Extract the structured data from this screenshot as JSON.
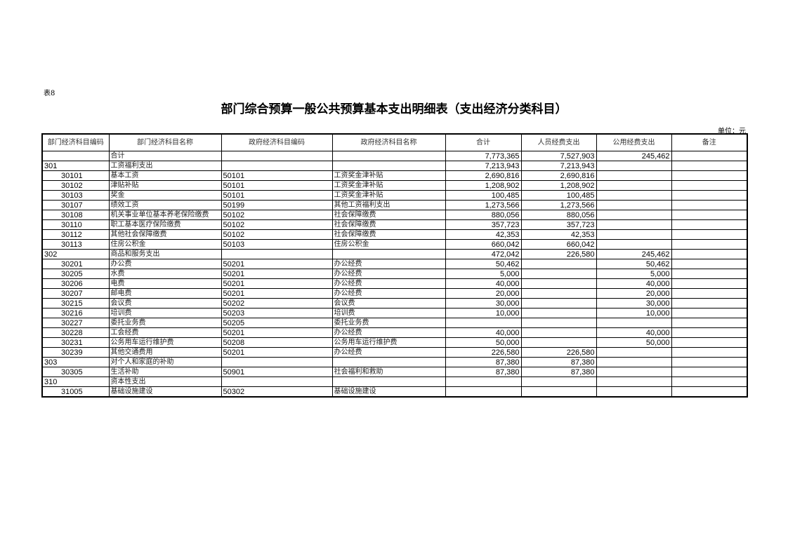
{
  "table_no": "表8",
  "title": "部门综合预算一般公共预算基本支出明细表（支出经济分类科目）",
  "unit": "单位：元",
  "headers": [
    "部门经济科目编码",
    "部门经济科目名称",
    "政府经济科目编码",
    "政府经济科目名称",
    "合计",
    "人员经费支出",
    "公用经费支出",
    "备注"
  ],
  "rows": [
    {
      "code": "",
      "name": "合计",
      "gov_code": "",
      "gov_name": "",
      "total": "7,773,365",
      "personnel": "7,527,903",
      "public": "245,462",
      "note": "",
      "level": 0
    },
    {
      "code": "301",
      "name": "工资福利支出",
      "gov_code": "",
      "gov_name": "",
      "total": "7,213,943",
      "personnel": "7,213,943",
      "public": "",
      "note": "",
      "level": 1
    },
    {
      "code": "30101",
      "name": "基本工资",
      "gov_code": "50101",
      "gov_name": "工资奖金津补贴",
      "total": "2,690,816",
      "personnel": "2,690,816",
      "public": "",
      "note": "",
      "level": 2
    },
    {
      "code": "30102",
      "name": "津贴补贴",
      "gov_code": "50101",
      "gov_name": "工资奖金津补贴",
      "total": "1,208,902",
      "personnel": "1,208,902",
      "public": "",
      "note": "",
      "level": 2
    },
    {
      "code": "30103",
      "name": "奖金",
      "gov_code": "50101",
      "gov_name": "工资奖金津补贴",
      "total": "100,485",
      "personnel": "100,485",
      "public": "",
      "note": "",
      "level": 2
    },
    {
      "code": "30107",
      "name": "绩效工资",
      "gov_code": "50199",
      "gov_name": "其他工资福利支出",
      "total": "1,273,566",
      "personnel": "1,273,566",
      "public": "",
      "note": "",
      "level": 2
    },
    {
      "code": "30108",
      "name": "机关事业单位基本养老保险缴费",
      "gov_code": "50102",
      "gov_name": "社会保障缴费",
      "total": "880,056",
      "personnel": "880,056",
      "public": "",
      "note": "",
      "level": 2
    },
    {
      "code": "30110",
      "name": "职工基本医疗保险缴费",
      "gov_code": "50102",
      "gov_name": "社会保障缴费",
      "total": "357,723",
      "personnel": "357,723",
      "public": "",
      "note": "",
      "level": 2
    },
    {
      "code": "30112",
      "name": "其他社会保障缴费",
      "gov_code": "50102",
      "gov_name": "社会保障缴费",
      "total": "42,353",
      "personnel": "42,353",
      "public": "",
      "note": "",
      "level": 2
    },
    {
      "code": "30113",
      "name": "住房公积金",
      "gov_code": "50103",
      "gov_name": "住房公积金",
      "total": "660,042",
      "personnel": "660,042",
      "public": "",
      "note": "",
      "level": 2
    },
    {
      "code": "302",
      "name": "商品和服务支出",
      "gov_code": "",
      "gov_name": "",
      "total": "472,042",
      "personnel": "226,580",
      "public": "245,462",
      "note": "",
      "level": 1
    },
    {
      "code": "30201",
      "name": "办公费",
      "gov_code": "50201",
      "gov_name": "办公经费",
      "total": "50,462",
      "personnel": "",
      "public": "50,462",
      "note": "",
      "level": 2
    },
    {
      "code": "30205",
      "name": "水费",
      "gov_code": "50201",
      "gov_name": "办公经费",
      "total": "5,000",
      "personnel": "",
      "public": "5,000",
      "note": "",
      "level": 2
    },
    {
      "code": "30206",
      "name": "电费",
      "gov_code": "50201",
      "gov_name": "办公经费",
      "total": "40,000",
      "personnel": "",
      "public": "40,000",
      "note": "",
      "level": 2
    },
    {
      "code": "30207",
      "name": "邮电费",
      "gov_code": "50201",
      "gov_name": "办公经费",
      "total": "20,000",
      "personnel": "",
      "public": "20,000",
      "note": "",
      "level": 2
    },
    {
      "code": "30215",
      "name": "会议费",
      "gov_code": "50202",
      "gov_name": "会议费",
      "total": "30,000",
      "personnel": "",
      "public": "30,000",
      "note": "",
      "level": 2
    },
    {
      "code": "30216",
      "name": "培训费",
      "gov_code": "50203",
      "gov_name": "培训费",
      "total": "10,000",
      "personnel": "",
      "public": "10,000",
      "note": "",
      "level": 2
    },
    {
      "code": "30227",
      "name": "委托业务费",
      "gov_code": "50205",
      "gov_name": "委托业务费",
      "total": "",
      "personnel": "",
      "public": "",
      "note": "",
      "level": 2
    },
    {
      "code": "30228",
      "name": "工会经费",
      "gov_code": "50201",
      "gov_name": "办公经费",
      "total": "40,000",
      "personnel": "",
      "public": "40,000",
      "note": "",
      "level": 2
    },
    {
      "code": "30231",
      "name": "公务用车运行维护费",
      "gov_code": "50208",
      "gov_name": "公务用车运行维护费",
      "total": "50,000",
      "personnel": "",
      "public": "50,000",
      "note": "",
      "level": 2
    },
    {
      "code": "30239",
      "name": "其他交通费用",
      "gov_code": "50201",
      "gov_name": "办公经费",
      "total": "226,580",
      "personnel": "226,580",
      "public": "",
      "note": "",
      "level": 2
    },
    {
      "code": "303",
      "name": "对个人和家庭的补助",
      "gov_code": "",
      "gov_name": "",
      "total": "87,380",
      "personnel": "87,380",
      "public": "",
      "note": "",
      "level": 1
    },
    {
      "code": "30305",
      "name": "生活补助",
      "gov_code": "50901",
      "gov_name": "社会福利和救助",
      "total": "87,380",
      "personnel": "87,380",
      "public": "",
      "note": "",
      "level": 2
    },
    {
      "code": "310",
      "name": "资本性支出",
      "gov_code": "",
      "gov_name": "",
      "total": "",
      "personnel": "",
      "public": "",
      "note": "",
      "level": 1
    },
    {
      "code": "31005",
      "name": "基础设施建设",
      "gov_code": "50302",
      "gov_name": "基础设施建设",
      "total": "",
      "personnel": "",
      "public": "",
      "note": "",
      "level": 2
    }
  ]
}
